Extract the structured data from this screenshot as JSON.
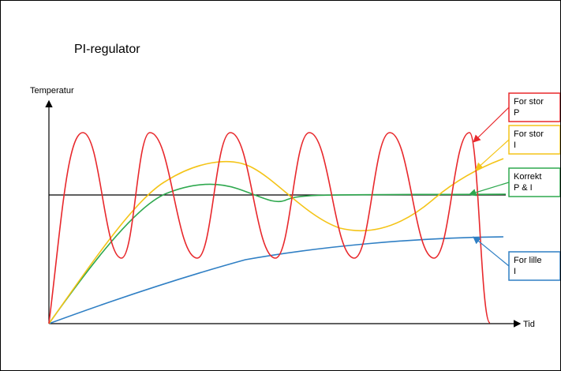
{
  "title": "PI-regulator",
  "axes": {
    "ylabel": "Temperatur",
    "xlabel": "Tid"
  },
  "colors": {
    "red": "#e8282c",
    "yellow": "#f4c418",
    "green": "#2ea84e",
    "blue": "#2f7fc4",
    "black": "#000000"
  },
  "labels": {
    "for_stor_p": [
      "For stor",
      "P"
    ],
    "for_stor_i": [
      "For stor",
      "I"
    ],
    "korrekt": [
      "Korrekt",
      "P & I"
    ],
    "for_lille_i": [
      "For lille",
      "I"
    ]
  }
}
